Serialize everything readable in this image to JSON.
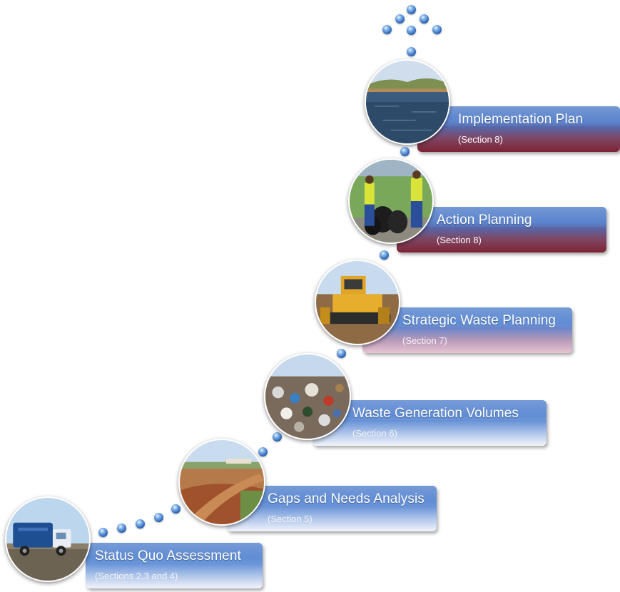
{
  "steps": [
    {
      "title": "Status Quo Assessment",
      "section": "(Sections 2,3 and 4)",
      "photo_icon": "garbage-truck-icon"
    },
    {
      "title": "Gaps and Needs Analysis",
      "section": "(Section 5)",
      "photo_icon": "dirt-road-icon"
    },
    {
      "title": "Waste Generation Volumes",
      "section": "(Section 6)",
      "photo_icon": "landfill-waste-icon"
    },
    {
      "title": "Strategic Waste Planning",
      "section": "(Section 7)",
      "photo_icon": "bulldozer-icon"
    },
    {
      "title": "Action Planning",
      "section": "(Section 8)",
      "photo_icon": "workers-bags-icon"
    },
    {
      "title": "Implementation Plan",
      "section": "(Section 8)",
      "photo_icon": "dam-water-icon"
    }
  ],
  "colors": {
    "box_top": "#2e66c2",
    "box_bottom_light": "#f2f4fb",
    "box_bottom_dark": "#7e2334",
    "dot": "#2a63b3"
  }
}
